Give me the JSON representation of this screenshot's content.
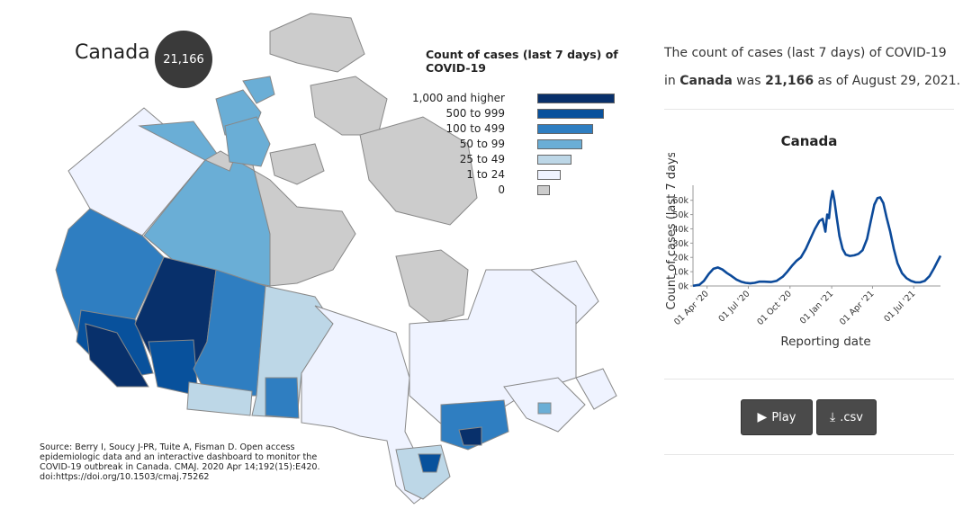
{
  "header": {
    "region": "Canada",
    "count": "21,166"
  },
  "legend": {
    "title": "Count of cases (last 7 days) of COVID-19",
    "items": [
      {
        "label": "1,000 and higher",
        "color": "#08306b"
      },
      {
        "label": "500 to 999",
        "color": "#08519c"
      },
      {
        "label": "100 to 499",
        "color": "#2f7ec1"
      },
      {
        "label": "50 to 99",
        "color": "#6aaed6"
      },
      {
        "label": "25 to 49",
        "color": "#bdd7e7"
      },
      {
        "label": "1 to 24",
        "color": "#eff3ff"
      },
      {
        "label": "0",
        "color": "#cccccc"
      }
    ]
  },
  "source": "Source: Berry I, Soucy J-PR, Tuite A, Fisman D. Open access epidemiologic data and an interactive dashboard to monitor the COVID-19 outbreak in Canada. CMAJ. 2020 Apr 14;192(15):E420. doi:https://doi.org/10.1503/cmaj.75262",
  "summary": {
    "prefix": "The count of cases (last 7 days) of COVID-19 in ",
    "region": "Canada",
    "middle": " was ",
    "count": "21,166",
    "suffix": " as of August 29, 2021."
  },
  "buttons": {
    "play": "Play",
    "csv": ".csv",
    "play_icon": "play-icon",
    "csv_icon": "download-icon"
  },
  "chart_data": {
    "type": "line",
    "title": "Canada",
    "xlabel": "Reporting date",
    "ylabel": "Count of cases (last 7 days)",
    "ylim": [
      0,
      68000
    ],
    "yticks": [
      "0k",
      "10k",
      "20k",
      "30k",
      "40k",
      "50k",
      "60k"
    ],
    "xticks": [
      "01 Apr '20",
      "01 Jul '20",
      "01 Oct '20",
      "01 Jan '21",
      "01 Apr '21",
      "01 Jul '21"
    ],
    "line_color": "#0c4a9a",
    "series": [
      {
        "x": [
          "2020-03-01",
          "2020-03-15",
          "2020-03-25",
          "2020-04-05",
          "2020-04-15",
          "2020-04-25",
          "2020-05-05",
          "2020-05-15",
          "2020-05-25",
          "2020-06-05",
          "2020-06-15",
          "2020-06-25",
          "2020-07-05",
          "2020-07-15",
          "2020-07-25",
          "2020-08-05",
          "2020-08-20",
          "2020-09-01",
          "2020-09-15",
          "2020-09-25",
          "2020-10-05",
          "2020-10-15",
          "2020-10-25",
          "2020-11-05",
          "2020-11-15",
          "2020-11-25",
          "2020-12-05",
          "2020-12-12",
          "2020-12-18",
          "2020-12-22",
          "2020-12-26",
          "2020-12-30",
          "2021-01-03",
          "2021-01-07",
          "2021-01-12",
          "2021-01-18",
          "2021-01-25",
          "2021-02-01",
          "2021-02-10",
          "2021-02-20",
          "2021-03-01",
          "2021-03-10",
          "2021-03-20",
          "2021-03-28",
          "2021-04-05",
          "2021-04-12",
          "2021-04-18",
          "2021-04-25",
          "2021-05-02",
          "2021-05-10",
          "2021-05-18",
          "2021-05-26",
          "2021-06-05",
          "2021-06-15",
          "2021-06-25",
          "2021-07-05",
          "2021-07-15",
          "2021-07-25",
          "2021-08-05",
          "2021-08-15",
          "2021-08-22",
          "2021-08-29"
        ],
        "values": [
          100,
          800,
          3500,
          8500,
          12000,
          13000,
          11500,
          9000,
          7000,
          4500,
          3000,
          2200,
          1800,
          2200,
          3000,
          3000,
          2800,
          3500,
          6500,
          10000,
          14000,
          17500,
          20000,
          26000,
          33000,
          40000,
          45500,
          47000,
          38000,
          50000,
          47500,
          60000,
          66500,
          60000,
          48000,
          35000,
          26000,
          22000,
          21000,
          21500,
          22500,
          25000,
          33000,
          45000,
          57000,
          61500,
          62000,
          58000,
          48000,
          38000,
          26000,
          16000,
          9000,
          5500,
          3500,
          2500,
          2500,
          3500,
          7000,
          12500,
          17000,
          21166
        ]
      }
    ]
  }
}
